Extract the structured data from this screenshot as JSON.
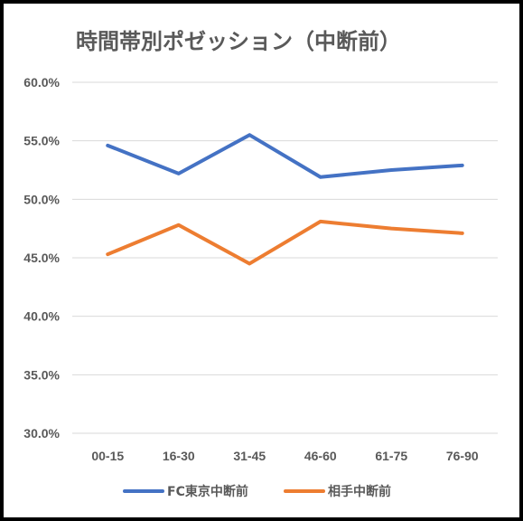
{
  "chart_data": {
    "type": "line",
    "title": "時間帯別ポゼッション（中断前）",
    "categories": [
      "00-15",
      "16-30",
      "31-45",
      "46-60",
      "61-75",
      "76-90"
    ],
    "series": [
      {
        "name": "FC東京中断前",
        "color": "#4472C4",
        "values": [
          54.6,
          52.2,
          55.5,
          51.9,
          52.5,
          52.9
        ]
      },
      {
        "name": "相手中断前",
        "color": "#ED7D31",
        "values": [
          45.3,
          47.8,
          44.5,
          48.1,
          47.5,
          47.1
        ]
      }
    ],
    "ylim": [
      30,
      60
    ],
    "yticks": [
      "30.0%",
      "35.0%",
      "40.0%",
      "45.0%",
      "50.0%",
      "55.0%",
      "60.0%"
    ],
    "grid": true,
    "legend": "bottom"
  }
}
